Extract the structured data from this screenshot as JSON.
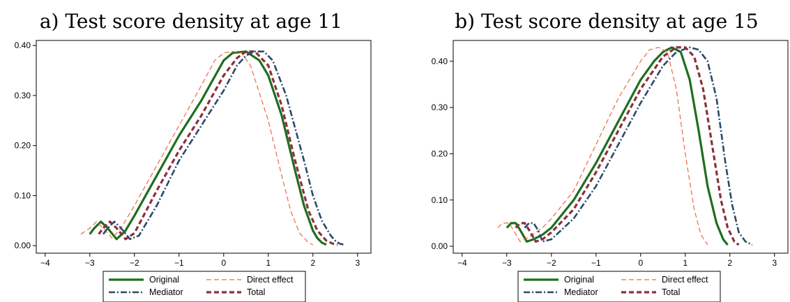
{
  "chart_data": [
    {
      "type": "line",
      "title": "a) Test score density at age 11",
      "xlabel": "",
      "ylabel": "",
      "xlim": [
        -4.2,
        3.3
      ],
      "ylim": [
        -0.015,
        0.41
      ],
      "xticks": [
        -4,
        -3,
        -2,
        -1,
        0,
        1,
        2,
        3
      ],
      "xtick_labels": [
        "−4",
        "−3",
        "−2",
        "−1",
        "0",
        "1",
        "2",
        "3"
      ],
      "yticks": [
        0,
        0.1,
        0.2,
        0.3,
        0.4
      ],
      "ytick_labels": [
        "0.00",
        "0.10",
        "0.20",
        "0.30",
        "0.40"
      ],
      "grid": false,
      "legend": "bottom-outside",
      "series": [
        {
          "name": "Original",
          "color": "#1f6e1f",
          "style": "solid",
          "x": [
            -3.0,
            -2.9,
            -2.75,
            -2.6,
            -2.4,
            -2.2,
            -2.0,
            -1.5,
            -1.0,
            -0.5,
            0.0,
            0.2,
            0.5,
            0.8,
            1.0,
            1.3,
            1.6,
            1.8,
            2.0,
            2.1,
            2.2,
            2.3
          ],
          "y": [
            0.023,
            0.035,
            0.048,
            0.035,
            0.013,
            0.03,
            0.06,
            0.14,
            0.22,
            0.29,
            0.37,
            0.385,
            0.388,
            0.37,
            0.34,
            0.26,
            0.15,
            0.08,
            0.03,
            0.015,
            0.006,
            0.002
          ]
        },
        {
          "name": "Direct effect",
          "color": "#f0683a",
          "style": "dashed",
          "x": [
            -3.2,
            -3.0,
            -2.85,
            -2.7,
            -2.5,
            -2.3,
            -2.0,
            -1.5,
            -1.0,
            -0.5,
            -0.2,
            0.0,
            0.2,
            0.4,
            0.6,
            1.0,
            1.3,
            1.5,
            1.7,
            1.9,
            2.0
          ],
          "y": [
            0.023,
            0.035,
            0.048,
            0.035,
            0.015,
            0.035,
            0.08,
            0.16,
            0.24,
            0.32,
            0.37,
            0.385,
            0.388,
            0.385,
            0.36,
            0.25,
            0.14,
            0.07,
            0.025,
            0.006,
            0.002
          ]
        },
        {
          "name": "Mediator",
          "color": "#2a4a6b",
          "style": "dashdot",
          "x": [
            -2.7,
            -2.6,
            -2.45,
            -2.3,
            -2.1,
            -1.9,
            -1.5,
            -1.0,
            -0.5,
            0.0,
            0.3,
            0.5,
            0.7,
            0.9,
            1.1,
            1.4,
            1.8,
            2.0,
            2.2,
            2.4,
            2.5,
            2.6,
            2.7
          ],
          "y": [
            0.023,
            0.035,
            0.048,
            0.035,
            0.013,
            0.02,
            0.08,
            0.17,
            0.24,
            0.31,
            0.36,
            0.38,
            0.388,
            0.388,
            0.37,
            0.3,
            0.17,
            0.1,
            0.05,
            0.02,
            0.01,
            0.004,
            0.002
          ]
        },
        {
          "name": "Total",
          "color": "#8c2f3c",
          "style": "dashed",
          "x": [
            -2.8,
            -2.7,
            -2.55,
            -2.4,
            -2.2,
            -2.0,
            -1.5,
            -1.0,
            -0.5,
            0.0,
            0.3,
            0.5,
            0.7,
            1.0,
            1.3,
            1.6,
            1.9,
            2.1,
            2.3,
            2.45,
            2.55
          ],
          "y": [
            0.023,
            0.035,
            0.048,
            0.035,
            0.013,
            0.025,
            0.11,
            0.19,
            0.26,
            0.34,
            0.375,
            0.388,
            0.388,
            0.36,
            0.28,
            0.17,
            0.07,
            0.03,
            0.01,
            0.004,
            0.002
          ]
        }
      ],
      "legend_items": [
        "Original",
        "Direct effect",
        "Mediator",
        "Total"
      ]
    },
    {
      "type": "line",
      "title": "b) Test score density at age 15",
      "xlabel": "",
      "ylabel": "",
      "xlim": [
        -4.2,
        3.3
      ],
      "ylim": [
        -0.015,
        0.445
      ],
      "xticks": [
        -4,
        -3,
        -2,
        -1,
        0,
        1,
        2,
        3
      ],
      "xtick_labels": [
        "−4",
        "−3",
        "−2",
        "−1",
        "0",
        "1",
        "2",
        "3"
      ],
      "yticks": [
        0,
        0.1,
        0.2,
        0.3,
        0.4
      ],
      "ytick_labels": [
        "0.00",
        "0.10",
        "0.20",
        "0.30",
        "0.40"
      ],
      "grid": false,
      "legend": "bottom-outside",
      "series": [
        {
          "name": "Original",
          "color": "#1f6e1f",
          "style": "solid",
          "x": [
            -3.0,
            -2.9,
            -2.8,
            -2.7,
            -2.55,
            -2.4,
            -2.2,
            -2.0,
            -1.5,
            -1.0,
            -0.5,
            0.0,
            0.3,
            0.5,
            0.7,
            0.9,
            1.1,
            1.3,
            1.5,
            1.7,
            1.85,
            1.95
          ],
          "y": [
            0.04,
            0.05,
            0.05,
            0.035,
            0.01,
            0.015,
            0.025,
            0.04,
            0.1,
            0.18,
            0.27,
            0.36,
            0.4,
            0.42,
            0.43,
            0.42,
            0.36,
            0.25,
            0.13,
            0.05,
            0.015,
            0.003
          ]
        },
        {
          "name": "Direct effect",
          "color": "#f0683a",
          "style": "dashed",
          "x": [
            -3.2,
            -3.1,
            -2.95,
            -2.85,
            -2.7,
            -2.5,
            -2.2,
            -2.0,
            -1.5,
            -1.0,
            -0.5,
            0.0,
            0.2,
            0.4,
            0.6,
            0.8,
            1.0,
            1.2,
            1.35,
            1.5
          ],
          "y": [
            0.04,
            0.05,
            0.05,
            0.035,
            0.01,
            0.02,
            0.04,
            0.06,
            0.12,
            0.22,
            0.32,
            0.4,
            0.425,
            0.43,
            0.42,
            0.34,
            0.2,
            0.08,
            0.025,
            0.003
          ]
        },
        {
          "name": "Mediator",
          "color": "#2a4a6b",
          "style": "dashdot",
          "x": [
            -2.6,
            -2.5,
            -2.4,
            -2.3,
            -2.2,
            -2.0,
            -1.5,
            -1.0,
            -0.5,
            0.0,
            0.5,
            0.8,
            1.1,
            1.3,
            1.5,
            1.7,
            1.9,
            2.05,
            2.2,
            2.35,
            2.5
          ],
          "y": [
            0.04,
            0.05,
            0.05,
            0.035,
            0.01,
            0.015,
            0.06,
            0.13,
            0.22,
            0.31,
            0.39,
            0.42,
            0.43,
            0.425,
            0.4,
            0.32,
            0.18,
            0.09,
            0.03,
            0.01,
            0.003
          ]
        },
        {
          "name": "Total",
          "color": "#8c2f3c",
          "style": "dashed",
          "x": [
            -2.8,
            -2.7,
            -2.6,
            -2.5,
            -2.35,
            -2.2,
            -2.0,
            -1.5,
            -1.0,
            -0.5,
            0.0,
            0.5,
            0.8,
            1.0,
            1.2,
            1.4,
            1.6,
            1.8,
            1.95,
            2.1,
            2.2
          ],
          "y": [
            0.04,
            0.05,
            0.05,
            0.035,
            0.01,
            0.015,
            0.03,
            0.08,
            0.16,
            0.25,
            0.34,
            0.41,
            0.43,
            0.43,
            0.41,
            0.34,
            0.22,
            0.1,
            0.04,
            0.01,
            0.003
          ]
        }
      ],
      "legend_items": [
        "Original",
        "Direct effect",
        "Mediator",
        "Total"
      ]
    }
  ]
}
